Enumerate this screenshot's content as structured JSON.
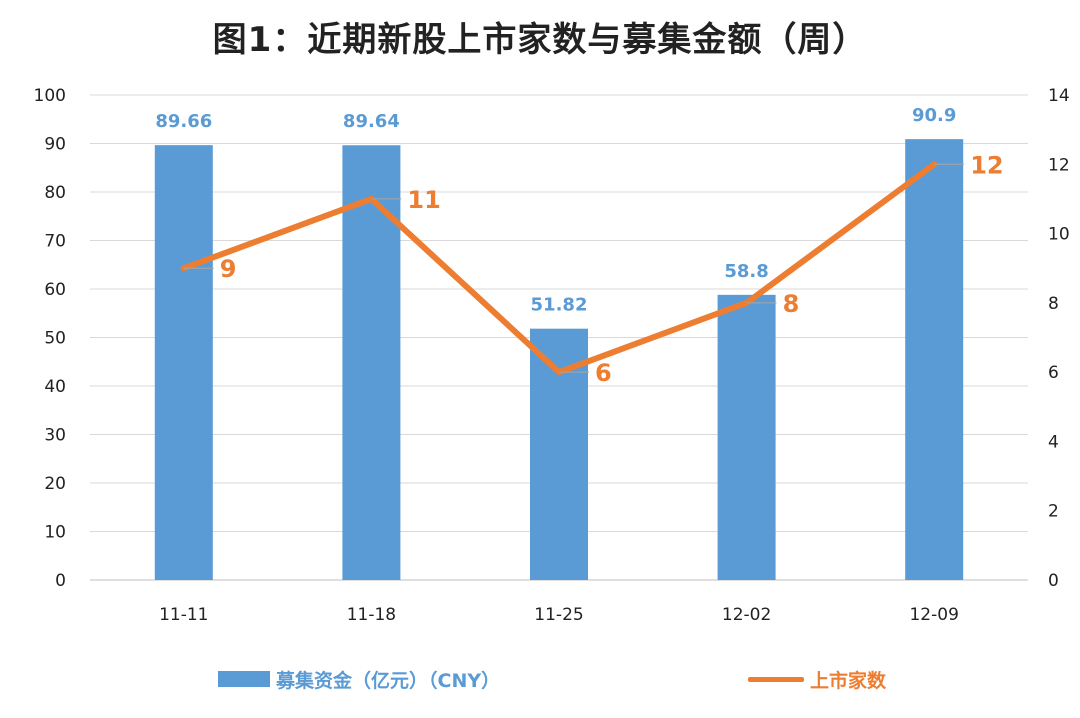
{
  "chart_data": {
    "type": "bar+line",
    "title": "图1：近期新股上市家数与募集金额（周）",
    "categories": [
      "11-11",
      "11-18",
      "11-25",
      "12-02",
      "12-09"
    ],
    "series": [
      {
        "name": "募集资金（亿元）（CNY）",
        "type": "bar",
        "axis": "left",
        "values": [
          89.66,
          89.64,
          51.82,
          58.8,
          90.9
        ],
        "labels": [
          "89.66",
          "89.64",
          "51.82",
          "58.8",
          "90.9"
        ],
        "color": "#5b9bd5"
      },
      {
        "name": "上市家数",
        "type": "line",
        "axis": "right",
        "values": [
          9,
          11,
          6,
          8,
          12
        ],
        "labels": [
          "9",
          "11",
          "6",
          "8",
          "12"
        ],
        "color": "#ed7d31"
      }
    ],
    "y_left": {
      "min": 0,
      "max": 100,
      "step": 10,
      "ticks": [
        "0",
        "10",
        "20",
        "30",
        "40",
        "50",
        "60",
        "70",
        "80",
        "90",
        "100"
      ]
    },
    "y_right": {
      "min": 0,
      "max": 14,
      "step": 2,
      "ticks": [
        "0",
        "2",
        "4",
        "6",
        "8",
        "10",
        "12",
        "14"
      ]
    },
    "grid": true,
    "legend_position": "bottom"
  }
}
